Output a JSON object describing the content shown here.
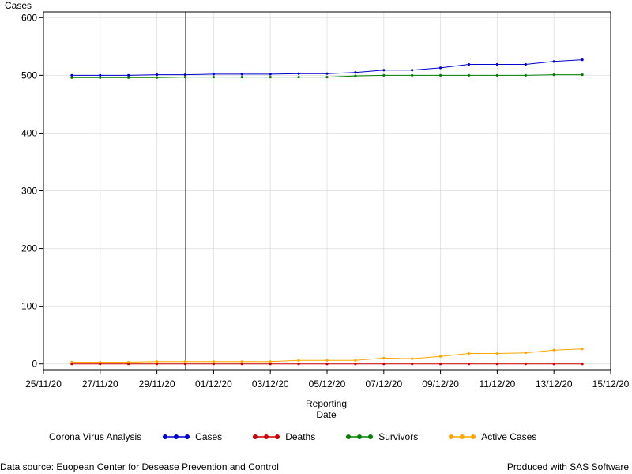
{
  "chart_data": {
    "type": "line",
    "title": "",
    "xlabel": "Reporting Date",
    "ylabel": "Cases",
    "x": [
      "26/11/20",
      "27/11/20",
      "28/11/20",
      "29/11/20",
      "30/11/20",
      "01/12/20",
      "02/12/20",
      "03/12/20",
      "04/12/20",
      "05/12/20",
      "06/12/20",
      "07/12/20",
      "08/12/20",
      "09/12/20",
      "10/12/20",
      "11/12/20",
      "12/12/20",
      "13/12/20",
      "14/12/20"
    ],
    "x_ticks": [
      "25/11/20",
      "27/11/20",
      "29/11/20",
      "01/12/20",
      "03/12/20",
      "05/12/20",
      "07/12/20",
      "09/12/20",
      "11/12/20",
      "13/12/20",
      "15/12/20"
    ],
    "xlim": [
      "25/11/20",
      "15/12/20"
    ],
    "ylim": [
      -10,
      610
    ],
    "y_ticks": [
      0,
      100,
      200,
      300,
      400,
      500,
      600
    ],
    "grid": true,
    "reference_line_x": "30/11/20",
    "series": [
      {
        "name": "Cases",
        "color": "#0000cc",
        "values": [
          500,
          500,
          500,
          501,
          501,
          502,
          502,
          502,
          503,
          503,
          505,
          509,
          509,
          513,
          519,
          519,
          519,
          524,
          527
        ]
      },
      {
        "name": "Deaths",
        "color": "#cc0000",
        "values": [
          0,
          0,
          0,
          0,
          0,
          0,
          0,
          0,
          0,
          0,
          0,
          0,
          0,
          0,
          0,
          0,
          0,
          0,
          0
        ]
      },
      {
        "name": "Survivors",
        "color": "#008000",
        "values": [
          496,
          496,
          496,
          496,
          497,
          497,
          497,
          497,
          497,
          497,
          499,
          500,
          500,
          500,
          500,
          500,
          500,
          501,
          501
        ]
      },
      {
        "name": "Active Cases",
        "color": "#ffa500",
        "values": [
          3,
          3,
          3,
          4,
          4,
          4,
          4,
          4,
          6,
          6,
          6,
          10,
          9,
          13,
          18,
          18,
          19,
          24,
          26
        ]
      }
    ],
    "legend_title": "Corona Virus Analysis",
    "legend_placement": "bottom"
  },
  "footer": {
    "source": "Data source: Euopean Center for Desease Prevention and Control",
    "produced": "Produced with SAS Software"
  }
}
